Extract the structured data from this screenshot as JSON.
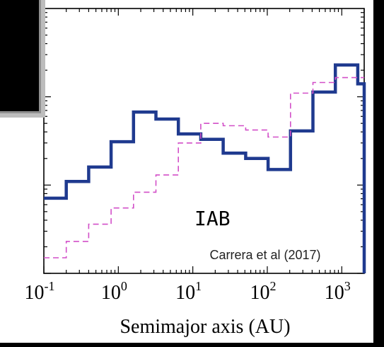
{
  "chart_data": {
    "type": "line",
    "step": true,
    "x_scale": "log",
    "xlim": [
      0.1,
      2000
    ],
    "xlabel": "Semimajor axis (AU)",
    "ylabel": "",
    "x_ticks": [
      0.1,
      1,
      10,
      100,
      1000
    ],
    "x_tick_labels": [
      {
        "base": "10",
        "exp": "-1"
      },
      {
        "base": "10",
        "exp": "0"
      },
      {
        "base": "10",
        "exp": "1"
      },
      {
        "base": "10",
        "exp": "2"
      },
      {
        "base": "10",
        "exp": "3"
      }
    ],
    "y_scale": "log",
    "ylim": [
      0.1,
      100
    ],
    "grid": false,
    "annotations": {
      "panel_label": "IAB",
      "citation": "Carrera et al (2017)"
    },
    "series": [
      {
        "style": "solid",
        "color": "#1f3a8f",
        "edges": [
          0.1,
          0.2,
          0.4,
          0.8,
          1.6,
          3.2,
          6.4,
          12.8,
          25.6,
          51.2,
          102.4,
          204.8,
          409.6,
          819.2,
          1638.4
        ],
        "values": [
          0.71,
          1.1,
          1.6,
          3.1,
          6.7,
          5.6,
          3.8,
          3.3,
          2.3,
          2.0,
          1.5,
          4.1,
          11.3,
          22.9,
          14.0
        ]
      },
      {
        "style": "dashed",
        "color": "#d24fc8",
        "edges": [
          0.1,
          0.2,
          0.4,
          0.8,
          1.6,
          3.2,
          6.4,
          12.8,
          25.6,
          51.2,
          102.4,
          204.8,
          409.6,
          819.2,
          1638.4
        ],
        "values": [
          0.15,
          0.23,
          0.36,
          0.55,
          0.83,
          1.3,
          3.0,
          5.0,
          4.7,
          4.2,
          3.5,
          11.0,
          14.5,
          16.5,
          16.5
        ]
      }
    ]
  }
}
